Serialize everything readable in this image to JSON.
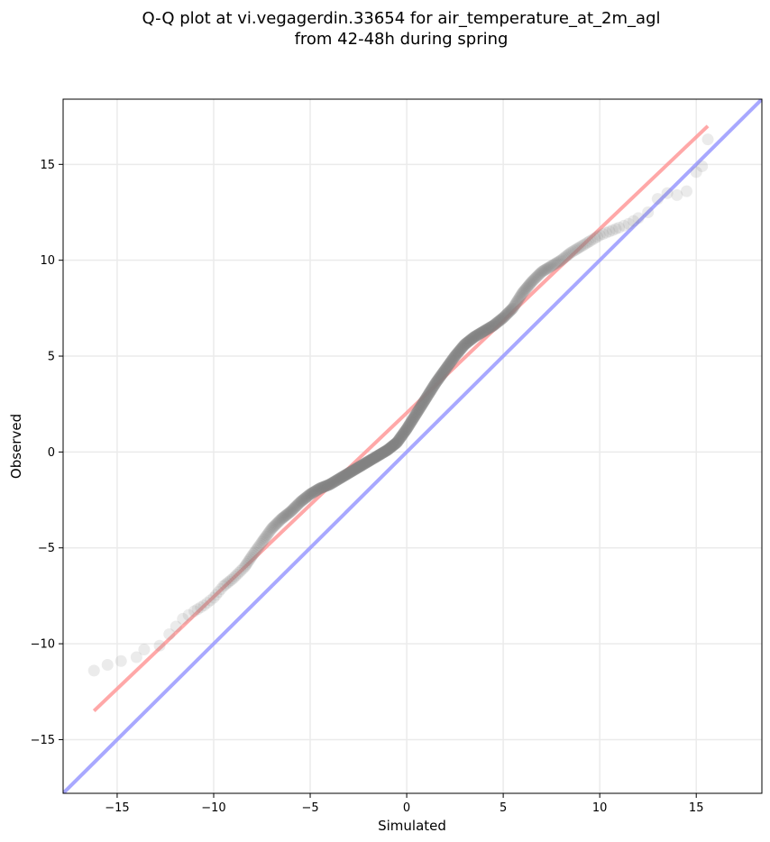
{
  "chart_data": {
    "type": "scatter",
    "title": [
      "Q-Q plot at vi.vegagerdin.33654 for air_temperature_at_2m_agl",
      "from 42-48h during spring"
    ],
    "xlabel": "Simulated",
    "ylabel": "Observed",
    "xlim": [
      -17.8,
      18.4
    ],
    "ylim": [
      -17.8,
      18.4
    ],
    "xticks": [
      -15,
      -10,
      -5,
      0,
      5,
      10,
      15
    ],
    "yticks": [
      -15,
      -10,
      -5,
      0,
      5,
      10,
      15
    ],
    "xtick_labels": [
      "−15",
      "−10",
      "−5",
      "0",
      "5",
      "10",
      "15"
    ],
    "ytick_labels": [
      "−15",
      "−10",
      "−5",
      "0",
      "5",
      "10",
      "15"
    ],
    "grid": true,
    "quantile_curve": [
      [
        -16.2,
        -11.4
      ],
      [
        -15.5,
        -11.1
      ],
      [
        -14.8,
        -10.9
      ],
      [
        -14.0,
        -10.7
      ],
      [
        -13.6,
        -10.3
      ],
      [
        -12.8,
        -10.1
      ],
      [
        -12.3,
        -9.5
      ],
      [
        -11.6,
        -8.7
      ],
      [
        -11.0,
        -8.3
      ],
      [
        -10.5,
        -8.0
      ],
      [
        -10.0,
        -7.6
      ],
      [
        -9.5,
        -7.0
      ],
      [
        -9.0,
        -6.6
      ],
      [
        -8.4,
        -6.0
      ],
      [
        -8.0,
        -5.4
      ],
      [
        -7.5,
        -4.7
      ],
      [
        -7.0,
        -4.0
      ],
      [
        -6.5,
        -3.5
      ],
      [
        -6.0,
        -3.1
      ],
      [
        -5.5,
        -2.6
      ],
      [
        -5.0,
        -2.2
      ],
      [
        -4.5,
        -1.9
      ],
      [
        -4.0,
        -1.7
      ],
      [
        -3.5,
        -1.4
      ],
      [
        -3.0,
        -1.1
      ],
      [
        -2.5,
        -0.8
      ],
      [
        -2.0,
        -0.5
      ],
      [
        -1.5,
        -0.2
      ],
      [
        -1.0,
        0.1
      ],
      [
        -0.5,
        0.5
      ],
      [
        0.0,
        1.2
      ],
      [
        0.5,
        2.0
      ],
      [
        1.0,
        2.8
      ],
      [
        1.5,
        3.6
      ],
      [
        2.0,
        4.3
      ],
      [
        2.5,
        5.0
      ],
      [
        3.0,
        5.6
      ],
      [
        3.5,
        6.0
      ],
      [
        4.0,
        6.3
      ],
      [
        4.5,
        6.6
      ],
      [
        5.0,
        7.0
      ],
      [
        5.5,
        7.5
      ],
      [
        6.0,
        8.3
      ],
      [
        6.5,
        8.9
      ],
      [
        7.0,
        9.4
      ],
      [
        7.5,
        9.7
      ],
      [
        8.0,
        10.0
      ],
      [
        8.5,
        10.4
      ],
      [
        9.0,
        10.7
      ],
      [
        9.5,
        11.0
      ],
      [
        10.0,
        11.3
      ],
      [
        10.5,
        11.5
      ],
      [
        11.0,
        11.7
      ],
      [
        11.5,
        11.9
      ],
      [
        12.0,
        12.2
      ],
      [
        12.5,
        12.5
      ],
      [
        13.0,
        13.2
      ],
      [
        13.5,
        13.5
      ],
      [
        14.0,
        13.4
      ],
      [
        14.5,
        13.6
      ],
      [
        15.0,
        14.6
      ],
      [
        15.3,
        14.9
      ],
      [
        15.6,
        16.3
      ]
    ],
    "fit_line": {
      "x": [
        -16.2,
        15.6
      ],
      "y": [
        -13.5,
        17.0
      ],
      "color": "#ff9999"
    },
    "identity_line": {
      "x": [
        -17.8,
        18.4
      ],
      "y": [
        -17.8,
        18.4
      ],
      "color": "#9999ff"
    },
    "point_color": "#808080"
  }
}
